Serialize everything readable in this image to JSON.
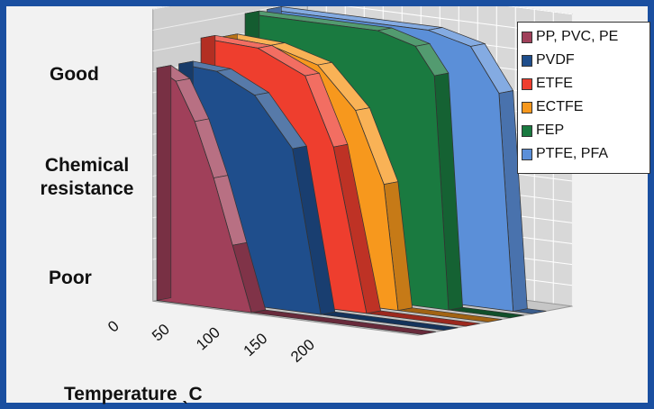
{
  "chart_data": {
    "type": "area",
    "title": "",
    "xlabel": "Temperature ˎC",
    "ylabel": "Chemical resistance",
    "y_tick_labels": [
      "Good",
      "Poor"
    ],
    "x_ticks": [
      0,
      50,
      100,
      150,
      200
    ],
    "xlim": [
      0,
      280
    ],
    "ylim": [
      0,
      1
    ],
    "grid": true,
    "legend_position": "top-right",
    "series": [
      {
        "name": "PP, PVC, PE",
        "color": "#a0405a",
        "x": [
          0,
          20,
          40,
          60,
          80,
          100
        ],
        "values": [
          0.86,
          0.82,
          0.68,
          0.48,
          0.24,
          0
        ]
      },
      {
        "name": "PVDF",
        "color": "#1f4e8c",
        "x": [
          0,
          40,
          80,
          120,
          150
        ],
        "values": [
          0.86,
          0.85,
          0.78,
          0.6,
          0
        ]
      },
      {
        "name": "ETFE",
        "color": "#ee3e2e",
        "x": [
          0,
          60,
          110,
          140,
          175
        ],
        "values": [
          0.94,
          0.93,
          0.85,
          0.6,
          0
        ]
      },
      {
        "name": "ECTFE",
        "color": "#f7981d",
        "x": [
          0,
          50,
          100,
          140,
          170,
          185
        ],
        "values": [
          0.93,
          0.92,
          0.87,
          0.72,
          0.46,
          0
        ]
      },
      {
        "name": "FEP",
        "color": "#1a7a40",
        "x": [
          0,
          140,
          180,
          200,
          215
        ],
        "values": [
          1.0,
          1.0,
          0.96,
          0.86,
          0
        ]
      },
      {
        "name": "PTFE, PFA",
        "color": "#5b8fd8",
        "x": [
          0,
          170,
          215,
          245,
          260
        ],
        "values": [
          1.0,
          1.0,
          0.96,
          0.8,
          0
        ]
      }
    ]
  }
}
